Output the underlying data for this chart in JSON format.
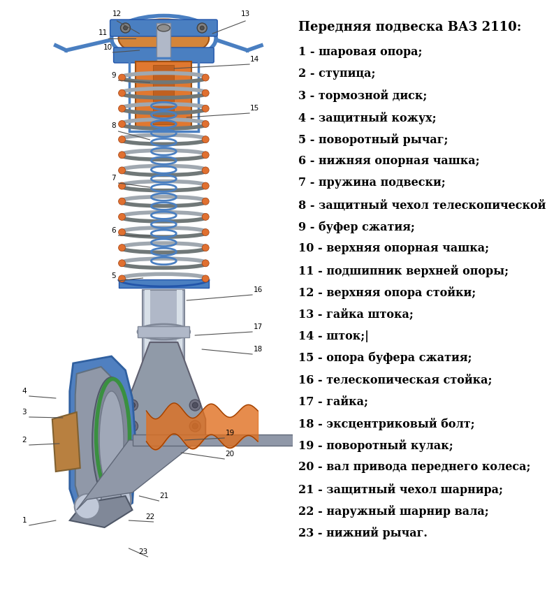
{
  "title": "Передняя подвеска ВАЗ 2110:",
  "items": [
    {
      "num": 1,
      "text": "шаровая опора;"
    },
    {
      "num": 2,
      "text": "ступица;"
    },
    {
      "num": 3,
      "text": "тормозной диск;"
    },
    {
      "num": 4,
      "text": "защитный кожух;"
    },
    {
      "num": 5,
      "text": "поворотный рычаг;"
    },
    {
      "num": 6,
      "text": "нижняя опорная чашка;"
    },
    {
      "num": 7,
      "text": "пружина подвески;"
    },
    {
      "num": 8,
      "text": "защитный чехол телескопической стойки;"
    },
    {
      "num": 9,
      "text": "буфер сжатия;"
    },
    {
      "num": 10,
      "text": "верхняя опорная чашка;"
    },
    {
      "num": 11,
      "text": "подшипник верхней опоры;"
    },
    {
      "num": 12,
      "text": "верхняя опора стойки;"
    },
    {
      "num": 13,
      "text": "гайка штока;"
    },
    {
      "num": 14,
      "text": "шток;|"
    },
    {
      "num": 15,
      "text": "опора буфера сжатия;"
    },
    {
      "num": 16,
      "text": "телескопическая стойка;"
    },
    {
      "num": 17,
      "text": "гайка;"
    },
    {
      "num": 18,
      "text": "эксцентриковый болт;"
    },
    {
      "num": 19,
      "text": "поворотный кулак;"
    },
    {
      "num": 20,
      "text": "вал привода переднего колеса;"
    },
    {
      "num": 21,
      "text": "защитный чехол шарнира;"
    },
    {
      "num": 22,
      "text": "наружный шарнир вала;"
    },
    {
      "num": 23,
      "text": "нижний рычаг."
    }
  ],
  "bg_color": "#ffffff",
  "text_color": "#000000",
  "title_fontsize": 13,
  "item_fontsize": 11.5,
  "fig_width": 7.83,
  "fig_height": 8.46,
  "blue": "#4a7fc1",
  "dark_blue": "#2255aa",
  "silver": "#b0b8c8",
  "dark_silver": "#808898",
  "orange": "#e07030",
  "dark_orange": "#a04010",
  "green": "#3a9040",
  "gray_hub": "#9098a8",
  "dark_gray_hub": "#606878"
}
